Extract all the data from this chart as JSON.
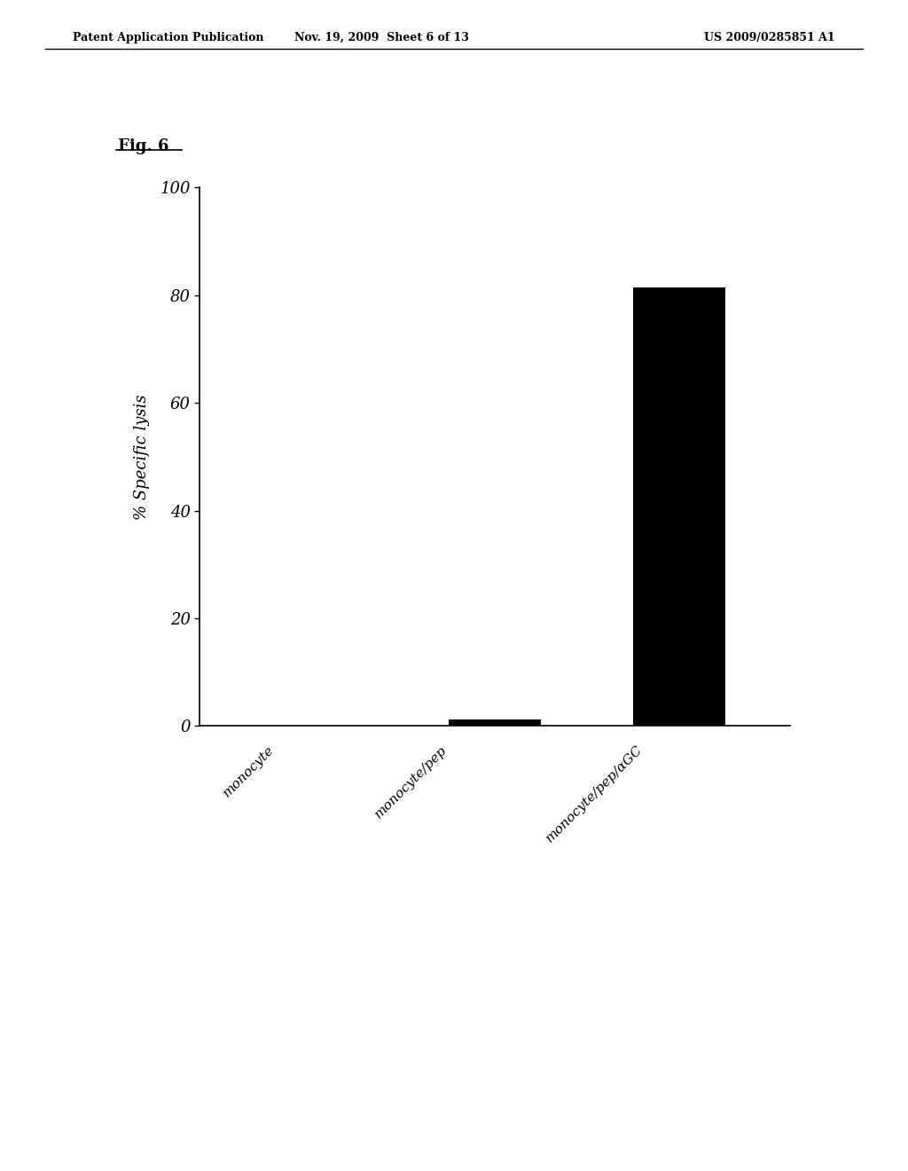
{
  "categories": [
    "monocyte",
    "monocyte/pep",
    "monocyte/pep/αGC"
  ],
  "values": [
    0.0,
    1.2,
    81.5
  ],
  "bar_color": "#000000",
  "bar_width": 0.5,
  "ylabel": "% Specific lysis",
  "ylim": [
    0,
    100
  ],
  "yticks": [
    0,
    20,
    40,
    60,
    80,
    100
  ],
  "fig_title": "Fig. 6",
  "header_left": "Patent Application Publication",
  "header_mid": "Nov. 19, 2009  Sheet 6 of 13",
  "header_right": "US 2009/0285851 A1",
  "background_color": "#ffffff",
  "tick_label_fontsize": 13,
  "ylabel_fontsize": 13,
  "fig_title_fontsize": 13
}
